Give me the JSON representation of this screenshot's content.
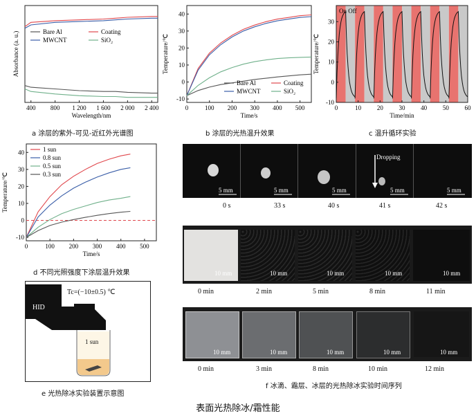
{
  "panels": {
    "a": {
      "caption": "a 涂层的紫外-可见-近红外光谱图",
      "xlabel": "Wavelength/nm",
      "ylabel": "Absorbance (a. u.)",
      "xticks": [
        "400",
        "800",
        "1 200",
        "1 600",
        "2 000",
        "2 400"
      ],
      "legend": [
        "Bare Al",
        "Coating",
        "MWCNT",
        "SiO₂"
      ]
    },
    "b": {
      "caption": "b 涂层的光热温升效果",
      "xlabel": "Time/s",
      "ylabel": "Temperature/℃",
      "xticks": [
        "0",
        "100",
        "200",
        "300",
        "400",
        "500"
      ],
      "yticks": [
        "-10",
        "0",
        "10",
        "20",
        "30",
        "40"
      ],
      "legend": [
        "Bare Al",
        "Coating",
        "MWCNT",
        "SiO₂"
      ]
    },
    "c": {
      "caption": "c 温升循环实验",
      "xlabel": "Time/min",
      "ylabel": "Temperature/℃",
      "xticks": [
        "0",
        "10",
        "20",
        "30",
        "40",
        "50",
        "60"
      ],
      "yticks": [
        "-10",
        "0",
        "10",
        "20",
        "30"
      ],
      "onoff_label": "On Off"
    },
    "d": {
      "caption": "d 不同光照强度下涂层温升效果",
      "xlabel": "Time/s",
      "ylabel": "Temperature/℃",
      "xticks": [
        "0",
        "100",
        "200",
        "300",
        "400",
        "500"
      ],
      "yticks": [
        "-10",
        "0",
        "10",
        "20",
        "30",
        "40"
      ],
      "legend": [
        "1 sun",
        "0.8 sun",
        "0.5 sun",
        "0.3 sun"
      ]
    },
    "e": {
      "caption": "e 光热除冰实验装置示意图",
      "temp_label": "Tc=(−10±0.5) ℃",
      "hid_label": "HID",
      "sun_label": "1 sun"
    },
    "f": {
      "caption": "f 冰滴、霜层、冰层的光热除冰实验时间序列",
      "dropping_label": "Dropping",
      "scale_label": "5 mm",
      "scale_label_2": "10 mm",
      "row1_times": [
        "0 s",
        "33 s",
        "40 s",
        "41 s",
        "42 s"
      ],
      "row2_times": [
        "0 min",
        "2 min",
        "5 min",
        "8 min",
        "11 min"
      ],
      "row3_times": [
        "0 min",
        "3 min",
        "8 min",
        "10 min",
        "12 min"
      ]
    }
  },
  "figure_title": "表面光热除冰/霜性能",
  "colors": {
    "red": "#e0474c",
    "blue": "#3a5ea8",
    "green": "#6fb08a",
    "gray": "#555555",
    "on_band": "#e8736f",
    "off_band": "#c9c9c9"
  },
  "chart_data": [
    {
      "type": "line",
      "panel": "a",
      "xlabel": "Wavelength/nm",
      "ylabel": "Absorbance (a. u.)",
      "xlim": [
        300,
        2500
      ],
      "x": [
        300,
        400,
        800,
        1200,
        1600,
        1800,
        2000,
        2400,
        2500
      ],
      "series": [
        {
          "name": "Bare Al",
          "values": [
            0.2,
            0.18,
            0.16,
            0.14,
            0.13,
            0.13,
            0.12,
            0.11,
            0.11
          ]
        },
        {
          "name": "Coating",
          "values": [
            0.9,
            0.95,
            0.97,
            0.98,
            0.99,
            1.0,
            1.01,
            1.02,
            1.02
          ]
        },
        {
          "name": "MWCNT",
          "values": [
            0.88,
            0.92,
            0.95,
            0.96,
            0.97,
            0.98,
            0.99,
            1.0,
            1.0
          ]
        },
        {
          "name": "SiO₂",
          "values": [
            0.16,
            0.13,
            0.1,
            0.08,
            0.07,
            0.07,
            0.06,
            0.06,
            0.06
          ]
        }
      ]
    },
    {
      "type": "line",
      "panel": "b",
      "xlabel": "Time/s",
      "ylabel": "Temperature/℃",
      "xlim": [
        0,
        550
      ],
      "ylim": [
        -12,
        45
      ],
      "x": [
        0,
        50,
        100,
        150,
        200,
        250,
        300,
        350,
        400,
        450,
        500,
        550
      ],
      "series": [
        {
          "name": "Bare Al",
          "values": [
            -8,
            -5,
            -3,
            -1.5,
            -0.5,
            0.5,
            1.5,
            2.2,
            3,
            3.6,
            4.2,
            4.6
          ]
        },
        {
          "name": "Coating",
          "values": [
            -8,
            8,
            17,
            23,
            27.5,
            31,
            33.5,
            35.5,
            37,
            38,
            39,
            39.5
          ]
        },
        {
          "name": "MWCNT",
          "values": [
            -8,
            7,
            16,
            22,
            26.5,
            30,
            32.5,
            34.5,
            36,
            37,
            38,
            38.5
          ]
        },
        {
          "name": "SiO₂",
          "values": [
            -8,
            -2,
            2.5,
            6,
            8.5,
            10.5,
            12,
            13,
            13.8,
            14.2,
            14.5,
            14.7
          ]
        }
      ]
    },
    {
      "type": "line",
      "panel": "c",
      "xlabel": "Time/min",
      "ylabel": "Temperature/℃",
      "xlim": [
        0,
        60
      ],
      "ylim": [
        -10,
        38
      ],
      "cycles": 7,
      "cycle_min": 8.57,
      "max": 35,
      "min": -8
    },
    {
      "type": "line",
      "panel": "d",
      "xlabel": "Time/s",
      "ylabel": "Temperature/℃",
      "xlim": [
        0,
        550
      ],
      "ylim": [
        -12,
        45
      ],
      "x": [
        0,
        50,
        100,
        150,
        200,
        250,
        300,
        350,
        400,
        440
      ],
      "series": [
        {
          "name": "1 sun",
          "values": [
            -10,
            5,
            14,
            21,
            26,
            30,
            33.5,
            36,
            38,
            39
          ]
        },
        {
          "name": "0.8 sun",
          "values": [
            -10,
            2,
            9,
            14.5,
            19,
            22.5,
            25.5,
            28,
            30,
            31
          ]
        },
        {
          "name": "0.5 sun",
          "values": [
            -10,
            -4,
            0.5,
            4,
            6.5,
            8.5,
            10.5,
            12,
            13,
            14
          ]
        },
        {
          "name": "0.3 sun",
          "values": [
            -10,
            -6,
            -3,
            -1,
            0.5,
            1.8,
            3,
            4,
            4.8,
            5.3
          ]
        }
      ],
      "reference_line": 0
    }
  ]
}
